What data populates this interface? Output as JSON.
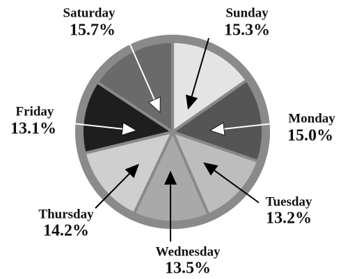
{
  "chart_data": {
    "type": "pie",
    "categories": [
      "Sunday",
      "Monday",
      "Tuesday",
      "Wednesday",
      "Thursday",
      "Friday",
      "Saturday"
    ],
    "values": [
      15.3,
      15.0,
      13.2,
      13.5,
      14.2,
      13.1,
      15.7
    ],
    "value_labels": [
      "15.3%",
      "15.0%",
      "13.2%",
      "13.5%",
      "14.2%",
      "13.1%",
      "15.7%"
    ],
    "colors": [
      "#e4e4e4",
      "#555555",
      "#bdbdbd",
      "#a9a9a9",
      "#cfcfcf",
      "#1e1e1e",
      "#6a6a6a"
    ]
  }
}
